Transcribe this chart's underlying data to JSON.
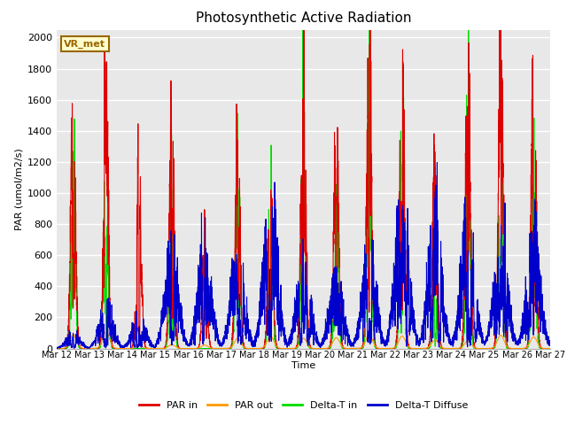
{
  "title": "Photosynthetic Active Radiation",
  "ylabel": "PAR (umol/m2/s)",
  "xlabel": "Time",
  "ylim": [
    0,
    2050
  ],
  "yticks": [
    0,
    200,
    400,
    600,
    800,
    1000,
    1200,
    1400,
    1600,
    1800,
    2000
  ],
  "xtick_labels": [
    "Mar 12",
    "Mar 13",
    "Mar 14",
    "Mar 15",
    "Mar 16",
    "Mar 17",
    "Mar 18",
    "Mar 19",
    "Mar 20",
    "Mar 21",
    "Mar 22",
    "Mar 23",
    "Mar 24",
    "Mar 25",
    "Mar 26",
    "Mar 27"
  ],
  "background_color": "#e8e8e8",
  "grid_color": "#ffffff",
  "colors": {
    "PAR in": "#dd0000",
    "PAR out": "#ff9900",
    "Delta-T in": "#00dd00",
    "Delta-T Diffuse": "#0000cc"
  },
  "linewidth": 0.8,
  "watermark": "VR_met",
  "watermark_bg": "#ffffcc",
  "watermark_border": "#996600",
  "daily_peaks_PAR_in": [
    1700,
    1700,
    1250,
    1530,
    630,
    1420,
    1150,
    1870,
    1450,
    1870,
    1920,
    1260,
    1840,
    2000,
    2000
  ],
  "daily_peaks_PAR_out": [
    90,
    110,
    20,
    25,
    22,
    65,
    80,
    65,
    70,
    90,
    80,
    55,
    50,
    85,
    75
  ],
  "daily_peaks_DeltaT_in": [
    1500,
    1480,
    0,
    1280,
    0,
    1430,
    1100,
    1580,
    1000,
    1600,
    1650,
    430,
    1650,
    1640,
    1400
  ],
  "daily_peaks_DeltaT_df": [
    80,
    230,
    160,
    490,
    490,
    480,
    820,
    460,
    380,
    550,
    840,
    660,
    690,
    580,
    590
  ]
}
